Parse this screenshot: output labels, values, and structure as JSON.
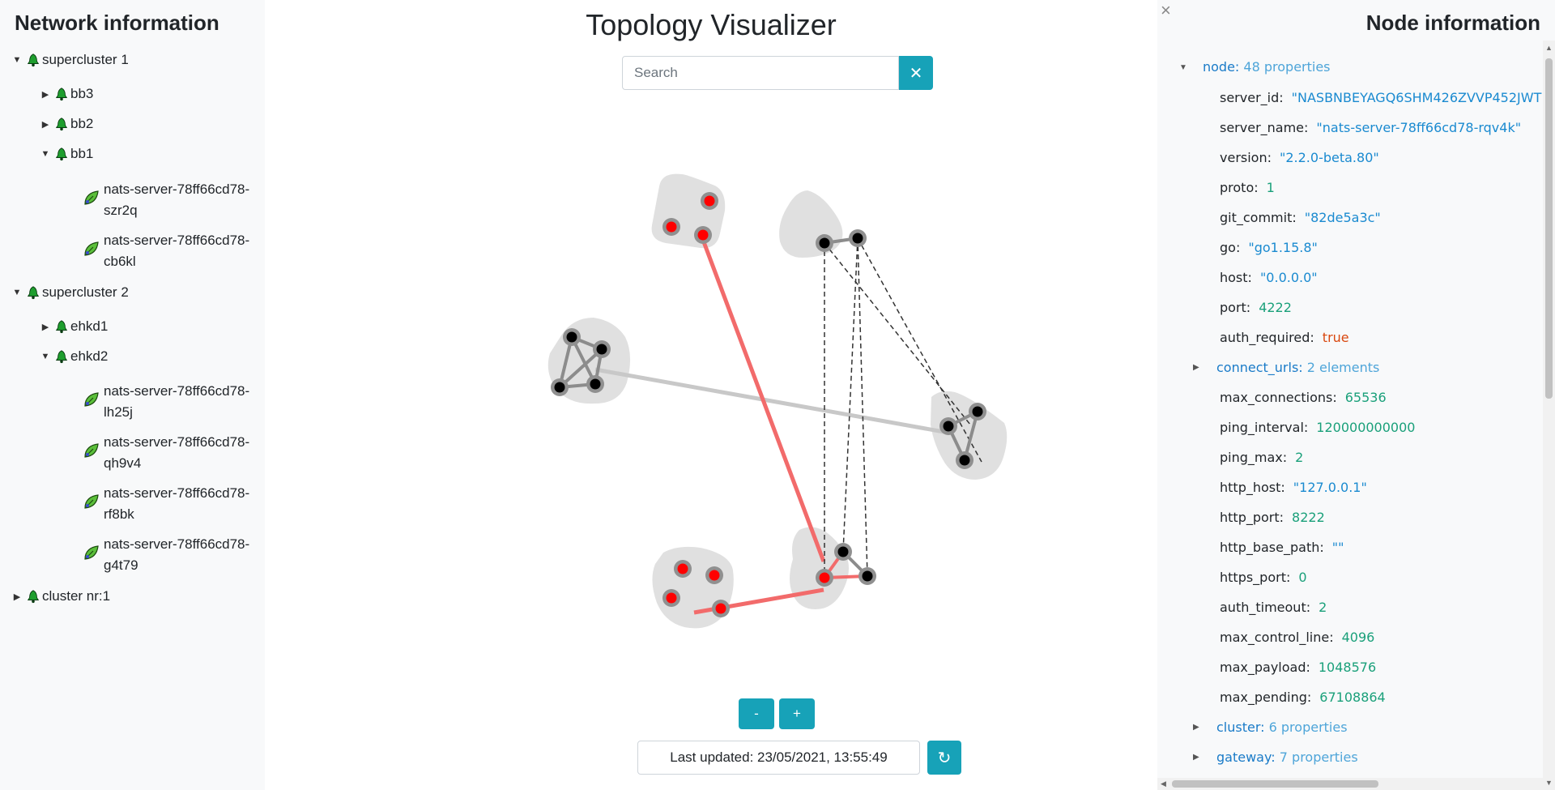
{
  "left_panel": {
    "title": "Network information",
    "tree": {
      "sc1": "supercluster 1",
      "bb3": "bb3",
      "bb2": "bb2",
      "bb1": "bb1",
      "bb1_server1": "nats-server-78ff66cd78-szr2q",
      "bb1_server2": "nats-server-78ff66cd78-cb6kl",
      "sc2": "supercluster 2",
      "ehkd1": "ehkd1",
      "ehkd2": "ehkd2",
      "ehkd2_server1": "nats-server-78ff66cd78-lh25j",
      "ehkd2_server2": "nats-server-78ff66cd78-qh9v4",
      "ehkd2_server3": "nats-server-78ff66cd78-rf8bk",
      "ehkd2_server4": "nats-server-78ff66cd78-g4t79",
      "cluster": "cluster nr:1"
    }
  },
  "center": {
    "title": "Topology Visualizer",
    "search_placeholder": "Search",
    "clear_label": "✕",
    "zoom_out": "-",
    "zoom_in": "+",
    "last_updated": "Last updated: 23/05/2021, 13:55:49",
    "refresh_label": "↻",
    "colors": {
      "accent": "#17a2b8",
      "highlight_link": "#f26b6b",
      "active_node": "#ff0000",
      "node": "#000000",
      "cluster_bg": "#e0e0e0"
    }
  },
  "right_panel": {
    "title": "Node information",
    "close": "×",
    "node_key": "node:",
    "node_count": "48 properties",
    "props": {
      "server_id": {
        "key": "server_id:",
        "value": "\"NASBNBEYAGQ6SHM426ZVVP452JWT"
      },
      "server_name": {
        "key": "server_name:",
        "value": "\"nats-server-78ff66cd78-rqv4k\""
      },
      "version": {
        "key": "version:",
        "value": "\"2.2.0-beta.80\""
      },
      "proto": {
        "key": "proto:",
        "value": "1"
      },
      "git_commit": {
        "key": "git_commit:",
        "value": "\"82de5a3c\""
      },
      "go": {
        "key": "go:",
        "value": "\"go1.15.8\""
      },
      "host": {
        "key": "host:",
        "value": "\"0.0.0.0\""
      },
      "port": {
        "key": "port:",
        "value": "4222"
      },
      "auth_required": {
        "key": "auth_required:",
        "value": "true"
      },
      "max_connections": {
        "key": "max_connections:",
        "value": "65536"
      },
      "ping_interval": {
        "key": "ping_interval:",
        "value": "120000000000"
      },
      "ping_max": {
        "key": "ping_max:",
        "value": "2"
      },
      "http_host": {
        "key": "http_host:",
        "value": "\"127.0.0.1\""
      },
      "http_port": {
        "key": "http_port:",
        "value": "8222"
      },
      "http_base_path": {
        "key": "http_base_path:",
        "value": "\"\""
      },
      "https_port": {
        "key": "https_port:",
        "value": "0"
      },
      "auth_timeout": {
        "key": "auth_timeout:",
        "value": "2"
      },
      "max_control_line": {
        "key": "max_control_line:",
        "value": "4096"
      },
      "max_payload": {
        "key": "max_payload:",
        "value": "1048576"
      },
      "max_pending": {
        "key": "max_pending:",
        "value": "67108864"
      }
    },
    "connect_urls": {
      "key": "connect_urls:",
      "count": "2 elements"
    },
    "cluster": {
      "key": "cluster:",
      "count": "6 properties"
    },
    "gateway": {
      "key": "gateway:",
      "count": "7 properties"
    }
  }
}
